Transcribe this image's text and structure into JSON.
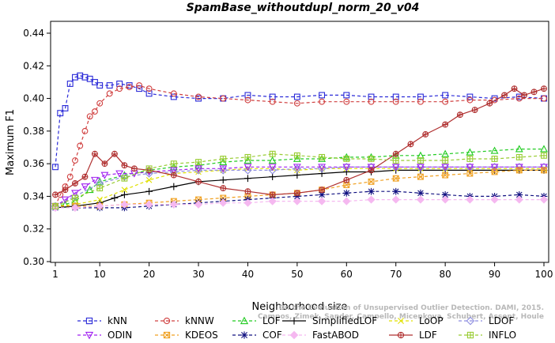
{
  "chart_data": {
    "type": "line",
    "title": "SpamBase_withoutdupl_norm_20_v04",
    "xlabel": "Neighborhood size",
    "ylabel": "Maximum F1",
    "xlim": [
      1,
      100
    ],
    "ylim": [
      0.3,
      0.44
    ],
    "x_ticks": [
      1,
      10,
      20,
      30,
      40,
      50,
      60,
      70,
      80,
      90,
      100
    ],
    "y_ticks": [
      0.3,
      0.32,
      0.34,
      0.36,
      0.38,
      0.4,
      0.42,
      0.44
    ],
    "x_tick_labels": [
      "1",
      "10",
      "20",
      "30",
      "40",
      "50",
      "60",
      "70",
      "80",
      "90",
      "100"
    ],
    "y_tick_labels": [
      "0.30",
      "0.32",
      "0.34",
      "0.36",
      "0.38",
      "0.40",
      "0.42",
      "0.44"
    ],
    "legend_placement": "bottom",
    "watermark": [
      "Campos, Zimek, Sander, Campello, Micenkova, Schubert, Assent, Houle",
      "On the Evaluation of Unsupervised Outlier Detection. DAMI, 2015."
    ],
    "series": [
      {
        "name": "kNN",
        "color": "#2b2bd8",
        "marker": "square",
        "dash": "dashed",
        "points": [
          [
            1,
            0.358
          ],
          [
            2,
            0.391
          ],
          [
            3,
            0.394
          ],
          [
            4,
            0.409
          ],
          [
            5,
            0.413
          ],
          [
            6,
            0.414
          ],
          [
            7,
            0.413
          ],
          [
            8,
            0.412
          ],
          [
            9,
            0.41
          ],
          [
            10,
            0.408
          ],
          [
            12,
            0.408
          ],
          [
            14,
            0.409
          ],
          [
            16,
            0.408
          ],
          [
            18,
            0.406
          ],
          [
            20,
            0.403
          ],
          [
            25,
            0.401
          ],
          [
            30,
            0.4
          ],
          [
            35,
            0.4
          ],
          [
            40,
            0.402
          ],
          [
            45,
            0.401
          ],
          [
            50,
            0.401
          ],
          [
            55,
            0.402
          ],
          [
            60,
            0.402
          ],
          [
            65,
            0.401
          ],
          [
            70,
            0.401
          ],
          [
            75,
            0.401
          ],
          [
            80,
            0.402
          ],
          [
            85,
            0.401
          ],
          [
            90,
            0.4
          ],
          [
            95,
            0.401
          ],
          [
            100,
            0.4
          ]
        ]
      },
      {
        "name": "kNNW",
        "color": "#d04040",
        "marker": "circle",
        "dash": "dashed",
        "points": [
          [
            1,
            0.334
          ],
          [
            2,
            0.341
          ],
          [
            3,
            0.346
          ],
          [
            4,
            0.352
          ],
          [
            5,
            0.362
          ],
          [
            6,
            0.371
          ],
          [
            7,
            0.38
          ],
          [
            8,
            0.389
          ],
          [
            9,
            0.392
          ],
          [
            10,
            0.397
          ],
          [
            12,
            0.403
          ],
          [
            14,
            0.406
          ],
          [
            16,
            0.407
          ],
          [
            18,
            0.408
          ],
          [
            20,
            0.406
          ],
          [
            25,
            0.403
          ],
          [
            30,
            0.401
          ],
          [
            35,
            0.4
          ],
          [
            40,
            0.399
          ],
          [
            45,
            0.398
          ],
          [
            50,
            0.397
          ],
          [
            55,
            0.398
          ],
          [
            60,
            0.398
          ],
          [
            65,
            0.398
          ],
          [
            70,
            0.398
          ],
          [
            75,
            0.398
          ],
          [
            80,
            0.398
          ],
          [
            85,
            0.399
          ],
          [
            90,
            0.399
          ],
          [
            95,
            0.4
          ],
          [
            100,
            0.4
          ]
        ]
      },
      {
        "name": "LOF",
        "color": "#22cc22",
        "marker": "triangle",
        "dash": "dashed",
        "points": [
          [
            1,
            0.334
          ],
          [
            3,
            0.335
          ],
          [
            5,
            0.337
          ],
          [
            8,
            0.344
          ],
          [
            10,
            0.349
          ],
          [
            15,
            0.353
          ],
          [
            20,
            0.356
          ],
          [
            25,
            0.358
          ],
          [
            30,
            0.359
          ],
          [
            35,
            0.361
          ],
          [
            40,
            0.362
          ],
          [
            45,
            0.362
          ],
          [
            50,
            0.363
          ],
          [
            55,
            0.363
          ],
          [
            60,
            0.364
          ],
          [
            65,
            0.364
          ],
          [
            70,
            0.365
          ],
          [
            75,
            0.365
          ],
          [
            80,
            0.366
          ],
          [
            85,
            0.367
          ],
          [
            90,
            0.368
          ],
          [
            95,
            0.369
          ],
          [
            100,
            0.369
          ]
        ]
      },
      {
        "name": "SimplifiedLOF",
        "color": "#000000",
        "marker": "plus",
        "dash": "solid",
        "points": [
          [
            1,
            0.333
          ],
          [
            5,
            0.334
          ],
          [
            10,
            0.336
          ],
          [
            13,
            0.339
          ],
          [
            15,
            0.341
          ],
          [
            20,
            0.343
          ],
          [
            25,
            0.346
          ],
          [
            30,
            0.349
          ],
          [
            35,
            0.35
          ],
          [
            40,
            0.351
          ],
          [
            45,
            0.352
          ],
          [
            50,
            0.353
          ],
          [
            55,
            0.354
          ],
          [
            60,
            0.355
          ],
          [
            65,
            0.355
          ],
          [
            70,
            0.356
          ],
          [
            75,
            0.356
          ],
          [
            80,
            0.356
          ],
          [
            85,
            0.356
          ],
          [
            90,
            0.356
          ],
          [
            95,
            0.356
          ],
          [
            100,
            0.356
          ]
        ]
      },
      {
        "name": "LoOP",
        "color": "#e0e000",
        "marker": "x",
        "dash": "dashed",
        "points": [
          [
            1,
            0.334
          ],
          [
            5,
            0.335
          ],
          [
            10,
            0.338
          ],
          [
            15,
            0.344
          ],
          [
            20,
            0.35
          ],
          [
            25,
            0.354
          ],
          [
            30,
            0.355
          ],
          [
            35,
            0.356
          ],
          [
            40,
            0.357
          ],
          [
            45,
            0.357
          ],
          [
            50,
            0.356
          ],
          [
            55,
            0.357
          ],
          [
            60,
            0.357
          ],
          [
            65,
            0.357
          ],
          [
            70,
            0.357
          ],
          [
            75,
            0.357
          ],
          [
            80,
            0.357
          ],
          [
            85,
            0.357
          ],
          [
            90,
            0.357
          ],
          [
            95,
            0.357
          ],
          [
            100,
            0.357
          ]
        ]
      },
      {
        "name": "LDOF",
        "color": "#8e8ee0",
        "marker": "diamond",
        "dash": "dashed",
        "points": [
          [
            1,
            0.334
          ],
          [
            5,
            0.34
          ],
          [
            10,
            0.348
          ],
          [
            15,
            0.352
          ],
          [
            20,
            0.354
          ],
          [
            25,
            0.355
          ],
          [
            30,
            0.356
          ],
          [
            35,
            0.356
          ],
          [
            40,
            0.356
          ],
          [
            45,
            0.356
          ],
          [
            50,
            0.357
          ],
          [
            55,
            0.357
          ],
          [
            60,
            0.358
          ],
          [
            65,
            0.358
          ],
          [
            70,
            0.358
          ],
          [
            75,
            0.358
          ],
          [
            80,
            0.358
          ],
          [
            85,
            0.358
          ],
          [
            90,
            0.358
          ],
          [
            95,
            0.358
          ],
          [
            100,
            0.358
          ]
        ]
      },
      {
        "name": "ODIN",
        "color": "#a020f0",
        "marker": "triangle-down",
        "dash": "dashed",
        "points": [
          [
            1,
            0.334
          ],
          [
            3,
            0.338
          ],
          [
            5,
            0.342
          ],
          [
            7,
            0.346
          ],
          [
            9,
            0.35
          ],
          [
            11,
            0.353
          ],
          [
            14,
            0.354
          ],
          [
            17,
            0.354
          ],
          [
            20,
            0.355
          ],
          [
            25,
            0.356
          ],
          [
            30,
            0.357
          ],
          [
            35,
            0.357
          ],
          [
            40,
            0.358
          ],
          [
            45,
            0.358
          ],
          [
            50,
            0.358
          ],
          [
            55,
            0.358
          ],
          [
            60,
            0.358
          ],
          [
            65,
            0.358
          ],
          [
            70,
            0.358
          ],
          [
            75,
            0.358
          ],
          [
            80,
            0.358
          ],
          [
            85,
            0.358
          ],
          [
            90,
            0.358
          ],
          [
            95,
            0.358
          ],
          [
            100,
            0.358
          ]
        ]
      },
      {
        "name": "KDEOS",
        "color": "#f0a020",
        "marker": "square-x",
        "dash": "dashed",
        "points": [
          [
            1,
            0.334
          ],
          [
            5,
            0.334
          ],
          [
            10,
            0.334
          ],
          [
            15,
            0.335
          ],
          [
            20,
            0.336
          ],
          [
            25,
            0.337
          ],
          [
            30,
            0.338
          ],
          [
            35,
            0.339
          ],
          [
            40,
            0.34
          ],
          [
            45,
            0.341
          ],
          [
            50,
            0.342
          ],
          [
            55,
            0.344
          ],
          [
            60,
            0.347
          ],
          [
            65,
            0.349
          ],
          [
            70,
            0.351
          ],
          [
            75,
            0.352
          ],
          [
            80,
            0.353
          ],
          [
            85,
            0.354
          ],
          [
            90,
            0.355
          ],
          [
            95,
            0.356
          ],
          [
            100,
            0.356
          ]
        ]
      },
      {
        "name": "COF",
        "color": "#101080",
        "marker": "asterisk",
        "dash": "dashed",
        "points": [
          [
            1,
            0.333
          ],
          [
            5,
            0.333
          ],
          [
            10,
            0.333
          ],
          [
            15,
            0.333
          ],
          [
            20,
            0.334
          ],
          [
            25,
            0.335
          ],
          [
            30,
            0.336
          ],
          [
            35,
            0.337
          ],
          [
            40,
            0.338
          ],
          [
            45,
            0.339
          ],
          [
            50,
            0.34
          ],
          [
            55,
            0.341
          ],
          [
            60,
            0.342
          ],
          [
            65,
            0.343
          ],
          [
            70,
            0.343
          ],
          [
            75,
            0.342
          ],
          [
            80,
            0.341
          ],
          [
            85,
            0.34
          ],
          [
            90,
            0.34
          ],
          [
            95,
            0.341
          ],
          [
            100,
            0.34
          ]
        ]
      },
      {
        "name": "FastABOD",
        "color": "#f5b8f0",
        "marker": "diamond-filled",
        "dash": "dashed",
        "points": [
          [
            1,
            0.333
          ],
          [
            5,
            0.333
          ],
          [
            10,
            0.334
          ],
          [
            15,
            0.335
          ],
          [
            20,
            0.335
          ],
          [
            25,
            0.335
          ],
          [
            30,
            0.335
          ],
          [
            35,
            0.336
          ],
          [
            40,
            0.336
          ],
          [
            45,
            0.337
          ],
          [
            50,
            0.337
          ],
          [
            55,
            0.337
          ],
          [
            60,
            0.337
          ],
          [
            65,
            0.338
          ],
          [
            70,
            0.338
          ],
          [
            75,
            0.338
          ],
          [
            80,
            0.338
          ],
          [
            85,
            0.338
          ],
          [
            90,
            0.338
          ],
          [
            95,
            0.338
          ],
          [
            100,
            0.338
          ]
        ]
      },
      {
        "name": "LDF",
        "color": "#b03030",
        "marker": "circle-plus",
        "dash": "solid",
        "points": [
          [
            1,
            0.341
          ],
          [
            3,
            0.344
          ],
          [
            5,
            0.348
          ],
          [
            7,
            0.352
          ],
          [
            9,
            0.366
          ],
          [
            11,
            0.36
          ],
          [
            13,
            0.366
          ],
          [
            15,
            0.359
          ],
          [
            17,
            0.357
          ],
          [
            20,
            0.356
          ],
          [
            25,
            0.353
          ],
          [
            30,
            0.349
          ],
          [
            35,
            0.345
          ],
          [
            40,
            0.343
          ],
          [
            45,
            0.341
          ],
          [
            50,
            0.342
          ],
          [
            55,
            0.344
          ],
          [
            60,
            0.35
          ],
          [
            65,
            0.356
          ],
          [
            70,
            0.366
          ],
          [
            73,
            0.372
          ],
          [
            76,
            0.378
          ],
          [
            80,
            0.384
          ],
          [
            83,
            0.39
          ],
          [
            86,
            0.393
          ],
          [
            89,
            0.397
          ],
          [
            92,
            0.402
          ],
          [
            94,
            0.406
          ],
          [
            96,
            0.402
          ],
          [
            98,
            0.404
          ],
          [
            100,
            0.406
          ]
        ]
      },
      {
        "name": "INFLO",
        "color": "#99cc33",
        "marker": "square-plus",
        "dash": "dashed",
        "points": [
          [
            1,
            0.334
          ],
          [
            5,
            0.339
          ],
          [
            10,
            0.345
          ],
          [
            15,
            0.351
          ],
          [
            20,
            0.357
          ],
          [
            25,
            0.36
          ],
          [
            30,
            0.361
          ],
          [
            35,
            0.363
          ],
          [
            40,
            0.364
          ],
          [
            45,
            0.366
          ],
          [
            50,
            0.365
          ],
          [
            55,
            0.364
          ],
          [
            60,
            0.363
          ],
          [
            65,
            0.363
          ],
          [
            70,
            0.362
          ],
          [
            75,
            0.362
          ],
          [
            80,
            0.362
          ],
          [
            85,
            0.363
          ],
          [
            90,
            0.363
          ],
          [
            95,
            0.364
          ],
          [
            100,
            0.365
          ]
        ]
      }
    ]
  }
}
